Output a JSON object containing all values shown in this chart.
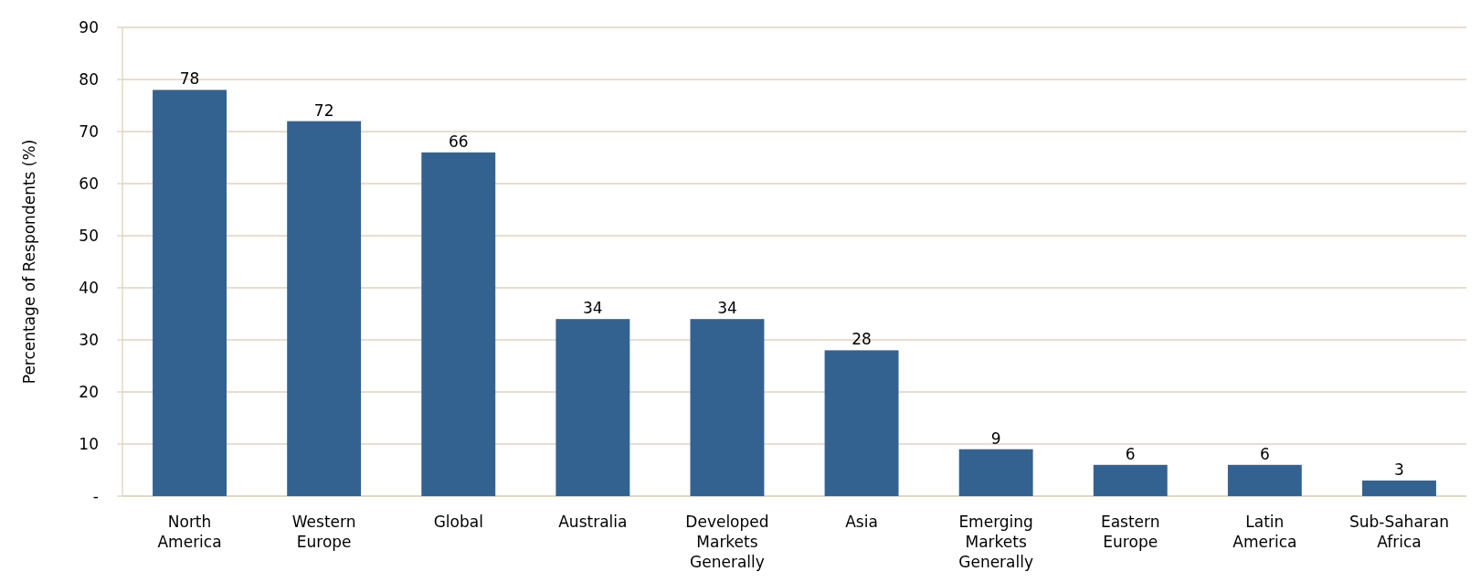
{
  "chart_data": {
    "type": "bar",
    "ylabel": "Percentage of Respondents (%)",
    "categories": [
      "North America",
      "Western Europe",
      "Global",
      "Australia",
      "Developed Markets Generally",
      "Asia",
      "Emerging Markets Generally",
      "Eastern Europe",
      "Latin America",
      "Sub-Saharan Africa"
    ],
    "values": [
      78,
      72,
      66,
      34,
      34,
      28,
      9,
      6,
      6,
      3
    ],
    "color": "#336291",
    "ylim": [
      0,
      90
    ],
    "yticks": [
      {
        "value": 0,
        "label": "-"
      },
      10,
      20,
      30,
      40,
      50,
      60,
      70,
      80,
      90
    ],
    "grid": "y",
    "data_labels": true
  }
}
